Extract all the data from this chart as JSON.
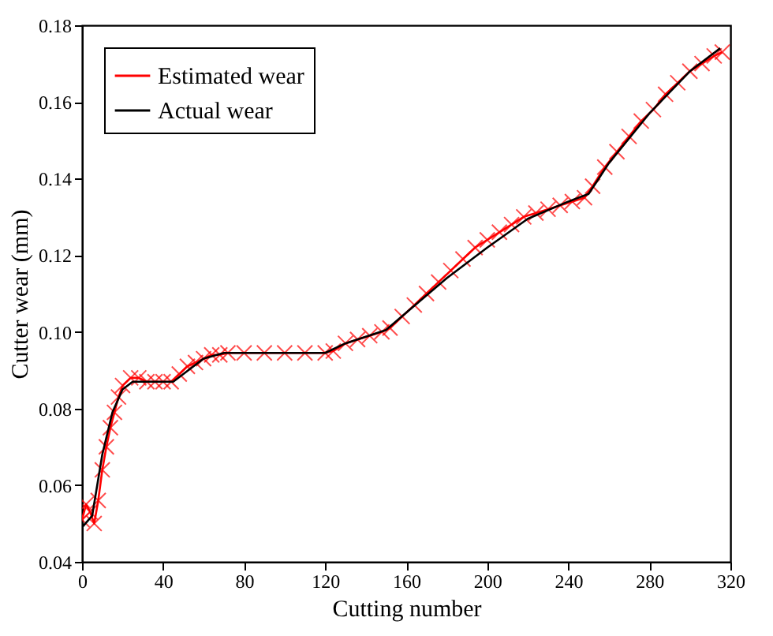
{
  "chart_data": {
    "type": "line",
    "xlabel": "Cutting number",
    "ylabel": "Cutter wear (mm)",
    "xlim": [
      0,
      320
    ],
    "xticks": [
      0,
      40,
      80,
      120,
      160,
      200,
      240,
      280,
      320
    ],
    "ylim": [
      0.04,
      0.18
    ],
    "yticks": [
      0.04,
      0.06,
      0.08,
      {
        "value": 0.1,
        "label": "0.10"
      },
      0.12,
      0.14,
      0.16,
      0.18
    ],
    "grid": false,
    "legend": "top left",
    "series": [
      {
        "name": "Estimated wear",
        "color": "#ff0000",
        "marker": "cross",
        "line_style": "solid",
        "x": [
          0,
          2,
          4,
          6,
          8,
          10,
          12,
          14,
          16,
          18,
          20,
          24,
          28,
          32,
          36,
          40,
          44,
          48,
          52,
          56,
          60,
          64,
          68,
          72,
          80,
          90,
          100,
          110,
          120,
          124,
          130,
          136,
          142,
          148,
          152,
          158,
          164,
          170,
          176,
          182,
          188,
          194,
          200,
          206,
          212,
          218,
          224,
          230,
          236,
          242,
          248,
          252,
          258,
          264,
          270,
          276,
          282,
          288,
          294,
          300,
          306,
          312,
          316
        ],
        "values": [
          0.051,
          0.055,
          0.053,
          0.05,
          0.056,
          0.064,
          0.07,
          0.075,
          0.079,
          0.083,
          0.086,
          0.088,
          0.088,
          0.087,
          0.087,
          0.087,
          0.087,
          0.089,
          0.091,
          0.092,
          0.093,
          0.094,
          0.094,
          0.0945,
          0.0945,
          0.0945,
          0.0945,
          0.0945,
          0.0945,
          0.095,
          0.097,
          0.098,
          0.099,
          0.1,
          0.101,
          0.104,
          0.107,
          0.11,
          0.113,
          0.116,
          0.119,
          0.122,
          0.124,
          0.126,
          0.128,
          0.13,
          0.131,
          0.132,
          0.133,
          0.134,
          0.135,
          0.138,
          0.143,
          0.147,
          0.151,
          0.155,
          0.158,
          0.162,
          0.165,
          0.168,
          0.17,
          0.172,
          0.173
        ]
      },
      {
        "name": "Actual wear",
        "color": "#000000",
        "marker": "none",
        "line_style": "solid",
        "x": [
          0,
          5,
          10,
          15,
          20,
          25,
          45,
          50,
          55,
          60,
          70,
          120,
          130,
          150,
          160,
          180,
          200,
          220,
          240,
          250,
          260,
          280,
          300,
          315
        ],
        "values": [
          0.049,
          0.052,
          0.068,
          0.079,
          0.085,
          0.087,
          0.087,
          0.089,
          0.091,
          0.093,
          0.0945,
          0.0945,
          0.097,
          0.1005,
          0.105,
          0.114,
          0.122,
          0.1295,
          0.134,
          0.136,
          0.144,
          0.157,
          0.168,
          0.174
        ]
      }
    ]
  }
}
